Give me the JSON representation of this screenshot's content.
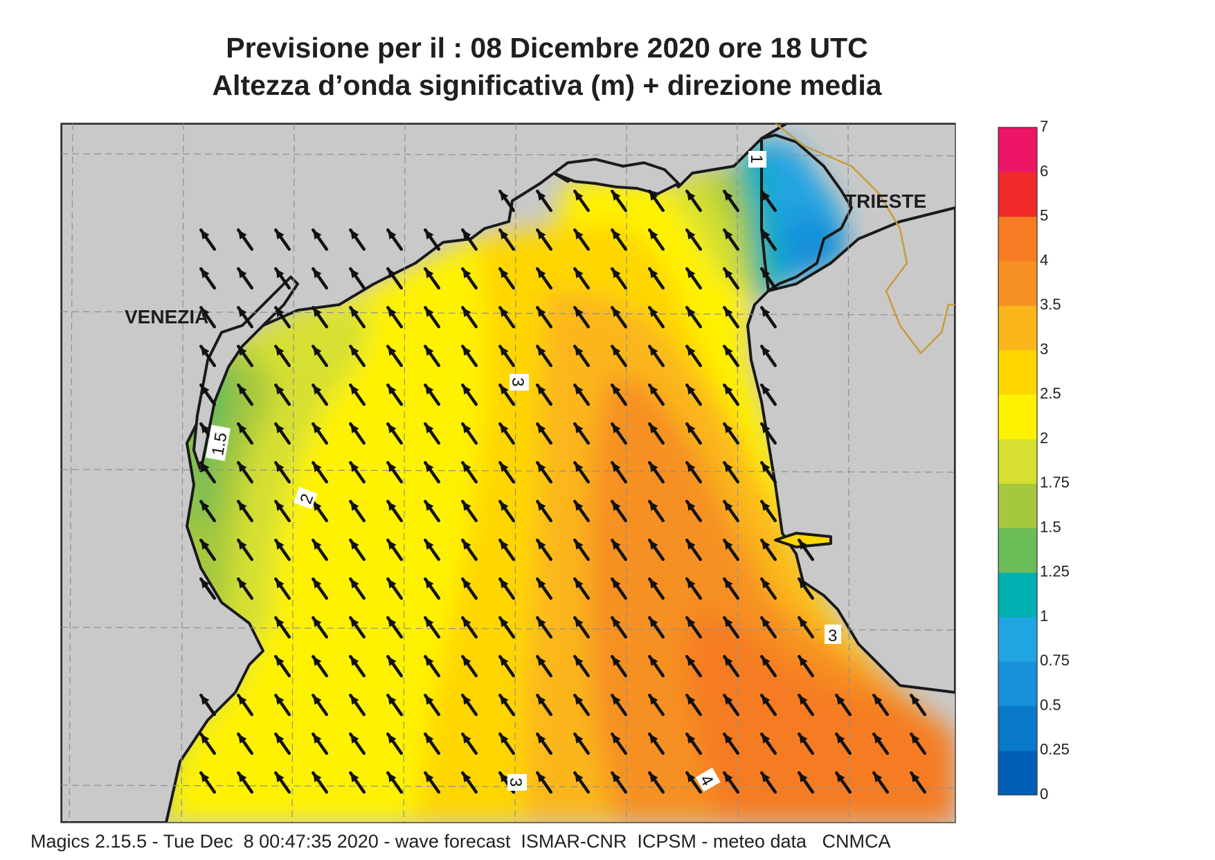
{
  "title_line1": "Previsione per il  :  08 Dicembre  2020   ore 18 UTC",
  "title_line2": "Altezza d’onda significativa (m) + direzione media",
  "footer": "Magics 2.15.5 - Tue Dec  8 00:47:35 2020 - wave forecast  ISMAR-CNR  ICPSM - meteo data   CNMCA",
  "cities": [
    {
      "name": "VENEZIA"
    },
    {
      "name": "TRIESTE"
    }
  ],
  "contour_labels": [
    "3",
    "1.5",
    "2",
    "3",
    "3",
    "4",
    "1"
  ],
  "legend": {
    "labels": [
      "0",
      "0.25",
      "0.5",
      "0.75",
      "1",
      "1.25",
      "1.5",
      "1.75",
      "2",
      "2.5",
      "3",
      "3.5",
      "4",
      "5",
      "6",
      "7"
    ],
    "colors": [
      "#0060b8",
      "#0a78c8",
      "#1690d8",
      "#20a4e2",
      "#00b0b0",
      "#6cbc58",
      "#a6c83e",
      "#d6e030",
      "#fff200",
      "#ffd600",
      "#fbb61c",
      "#f69022",
      "#f57c22",
      "#f02a2a",
      "#ec1566"
    ]
  },
  "chart_data": {
    "type": "heatmap",
    "variable": "Altezza d’onda significativa (m)",
    "levels": [
      0,
      0.25,
      0.5,
      0.75,
      1,
      1.25,
      1.5,
      1.75,
      2,
      2.5,
      3,
      3.5,
      4,
      5,
      6,
      7
    ],
    "mean_direction": "towards NW",
    "max_value_approx": 4.2,
    "min_value_approx": 0.5
  }
}
